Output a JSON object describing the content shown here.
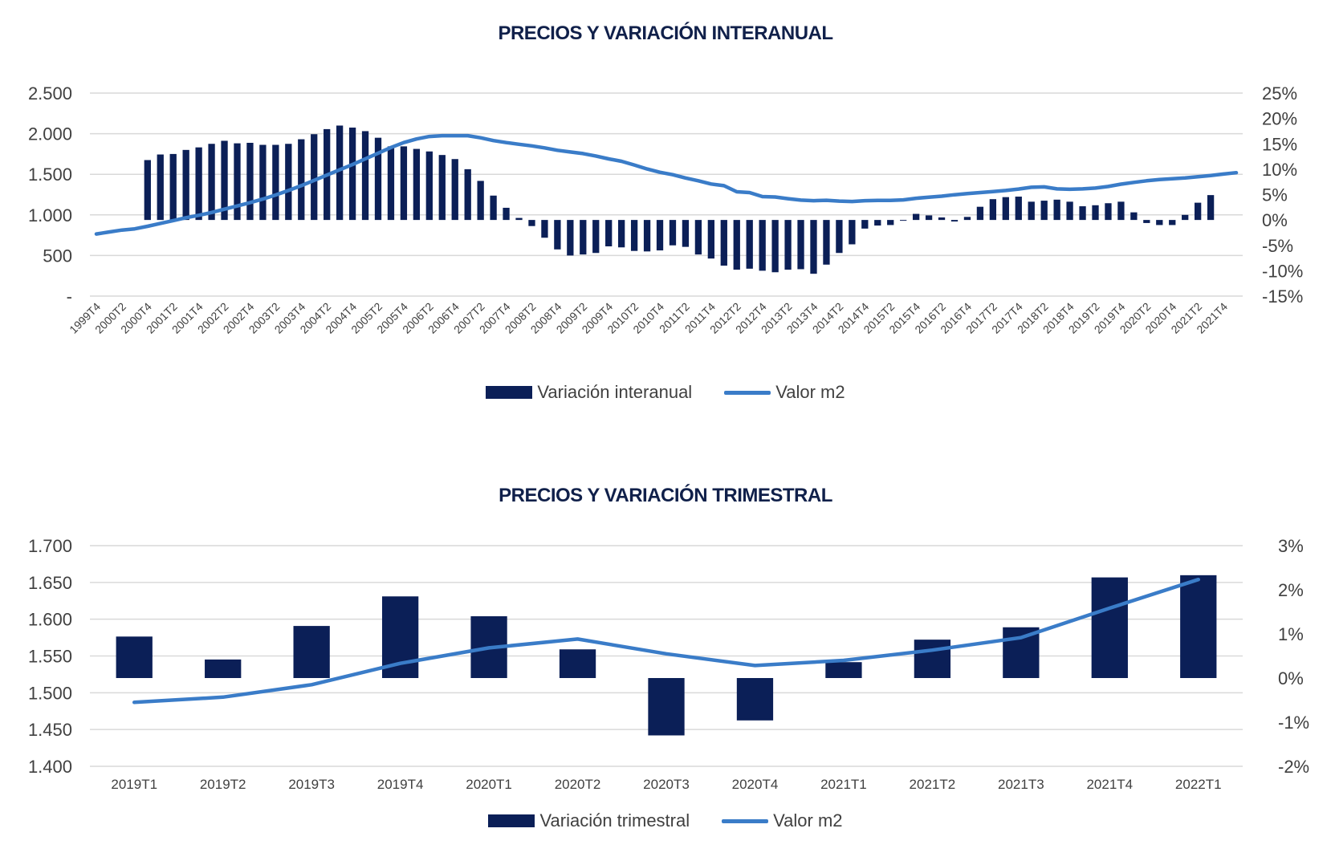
{
  "colors": {
    "bar": "#0b1f57",
    "line": "#3a7cc8",
    "grid": "#d9d9d9",
    "axis_text": "#404040",
    "title": "#10204a"
  },
  "chart_data": [
    {
      "type": "bar",
      "title": "PRECIOS Y VARIACIÓN INTERANUAL",
      "left_axis": {
        "ticks": [
          "-",
          "500",
          "1.000",
          "1.500",
          "2.000",
          "2.500"
        ],
        "ylim": [
          0,
          2500
        ]
      },
      "right_axis": {
        "ticks": [
          "-15%",
          "-10%",
          "-5%",
          "0%",
          "5%",
          "10%",
          "15%",
          "20%",
          "25%"
        ],
        "ylim": [
          -15,
          25
        ]
      },
      "x_tick_labels": [
        "1999T4",
        "2000T2",
        "2000T4",
        "2001T2",
        "2001T4",
        "2002T2",
        "2002T4",
        "2003T2",
        "2003T4",
        "2004T2",
        "2004T4",
        "2005T2",
        "2005T4",
        "2006T2",
        "2006T4",
        "2007T2",
        "2007T4",
        "2008T2",
        "2008T4",
        "2009T2",
        "2009T4",
        "2010T2",
        "2010T4",
        "2011T2",
        "2011T4",
        "2012T2",
        "2012T4",
        "2013T2",
        "2013T4",
        "2014T2",
        "2014T4",
        "2015T2",
        "2015T4",
        "2016T2",
        "2016T4",
        "2017T2",
        "2017T4",
        "2018T2",
        "2018T4",
        "2019T2",
        "2019T4",
        "2020T2",
        "2020T4",
        "2021T2",
        "2021T4"
      ],
      "periods": 90,
      "series": [
        {
          "name": "Variación interanual",
          "kind": "bar",
          "axis": "right",
          "values": [
            null,
            null,
            null,
            null,
            11.8,
            12.9,
            13.0,
            13.8,
            14.3,
            15.0,
            15.6,
            15.1,
            15.2,
            14.8,
            14.8,
            15.0,
            15.9,
            16.9,
            17.9,
            18.6,
            18.2,
            17.5,
            16.2,
            14.5,
            14.5,
            14.0,
            13.5,
            12.8,
            12.0,
            10.0,
            7.7,
            4.8,
            2.4,
            0.4,
            -1.2,
            -3.5,
            -5.8,
            -7.0,
            -6.8,
            -6.5,
            -5.2,
            -5.4,
            -6.1,
            -6.2,
            -6.0,
            -5.0,
            -5.3,
            -6.8,
            -7.6,
            -9.0,
            -9.8,
            -9.6,
            -10.0,
            -10.3,
            -9.8,
            -9.7,
            -10.6,
            -8.8,
            -6.5,
            -4.8,
            -1.7,
            -1.1,
            -1.0,
            0.0,
            1.2,
            0.9,
            0.5,
            -0.3,
            0.6,
            2.6,
            4.1,
            4.5,
            4.6,
            3.6,
            3.8,
            4.0,
            3.6,
            2.7,
            2.9,
            3.3,
            3.6,
            1.5,
            -0.6,
            -1.0,
            -1.0,
            1.0,
            3.4,
            4.9
          ]
        },
        {
          "name": "Valor m2",
          "kind": "line",
          "axis": "left",
          "values": [
            765,
            790,
            813,
            828,
            860,
            895,
            930,
            965,
            995,
            1030,
            1070,
            1110,
            1150,
            1195,
            1245,
            1300,
            1360,
            1425,
            1490,
            1555,
            1620,
            1690,
            1760,
            1830,
            1890,
            1935,
            1965,
            1975,
            1975,
            1975,
            1950,
            1915,
            1890,
            1870,
            1850,
            1825,
            1795,
            1775,
            1755,
            1725,
            1690,
            1660,
            1615,
            1565,
            1525,
            1495,
            1455,
            1420,
            1380,
            1360,
            1285,
            1275,
            1225,
            1220,
            1200,
            1182,
            1175,
            1180,
            1170,
            1165,
            1175,
            1178,
            1178,
            1185,
            1205,
            1218,
            1230,
            1248,
            1262,
            1275,
            1288,
            1300,
            1318,
            1340,
            1345,
            1320,
            1315,
            1320,
            1330,
            1350,
            1378,
            1400,
            1420,
            1435,
            1445,
            1455,
            1470,
            1485,
            1503,
            1520
          ]
        }
      ]
    },
    {
      "type": "bar",
      "title": "PRECIOS Y VARIACIÓN TRIMESTRAL",
      "categories": [
        "2019T1",
        "2019T2",
        "2019T3",
        "2019T4",
        "2020T1",
        "2020T2",
        "2020T3",
        "2020T4",
        "2021T1",
        "2021T2",
        "2021T3",
        "2021T4",
        "2022T1"
      ],
      "left_axis": {
        "ticks": [
          "1.400",
          "1.450",
          "1.500",
          "1.550",
          "1.600",
          "1.650",
          "1.700"
        ],
        "ylim": [
          1400,
          1700
        ]
      },
      "right_axis": {
        "ticks": [
          "-2%",
          "-1%",
          "0%",
          "1%",
          "2%",
          "3%"
        ],
        "ylim": [
          -2,
          3
        ]
      },
      "series": [
        {
          "name": "Variación trimestral",
          "kind": "bar",
          "axis": "right",
          "values": [
            0.94,
            0.42,
            1.18,
            1.85,
            1.4,
            0.65,
            -1.3,
            -0.96,
            0.36,
            0.87,
            1.15,
            2.28,
            2.33
          ]
        },
        {
          "name": "Valor m2",
          "kind": "line",
          "axis": "left",
          "values": [
            1487,
            1494,
            1511,
            1540,
            1561,
            1573,
            1553,
            1537,
            1544,
            1558,
            1575,
            1615,
            1654
          ]
        }
      ]
    }
  ],
  "legends": {
    "top": {
      "bar_label": "Variación interanual",
      "line_label": "Valor m2"
    },
    "bottom": {
      "bar_label": "Variación trimestral",
      "line_label": "Valor m2"
    }
  }
}
